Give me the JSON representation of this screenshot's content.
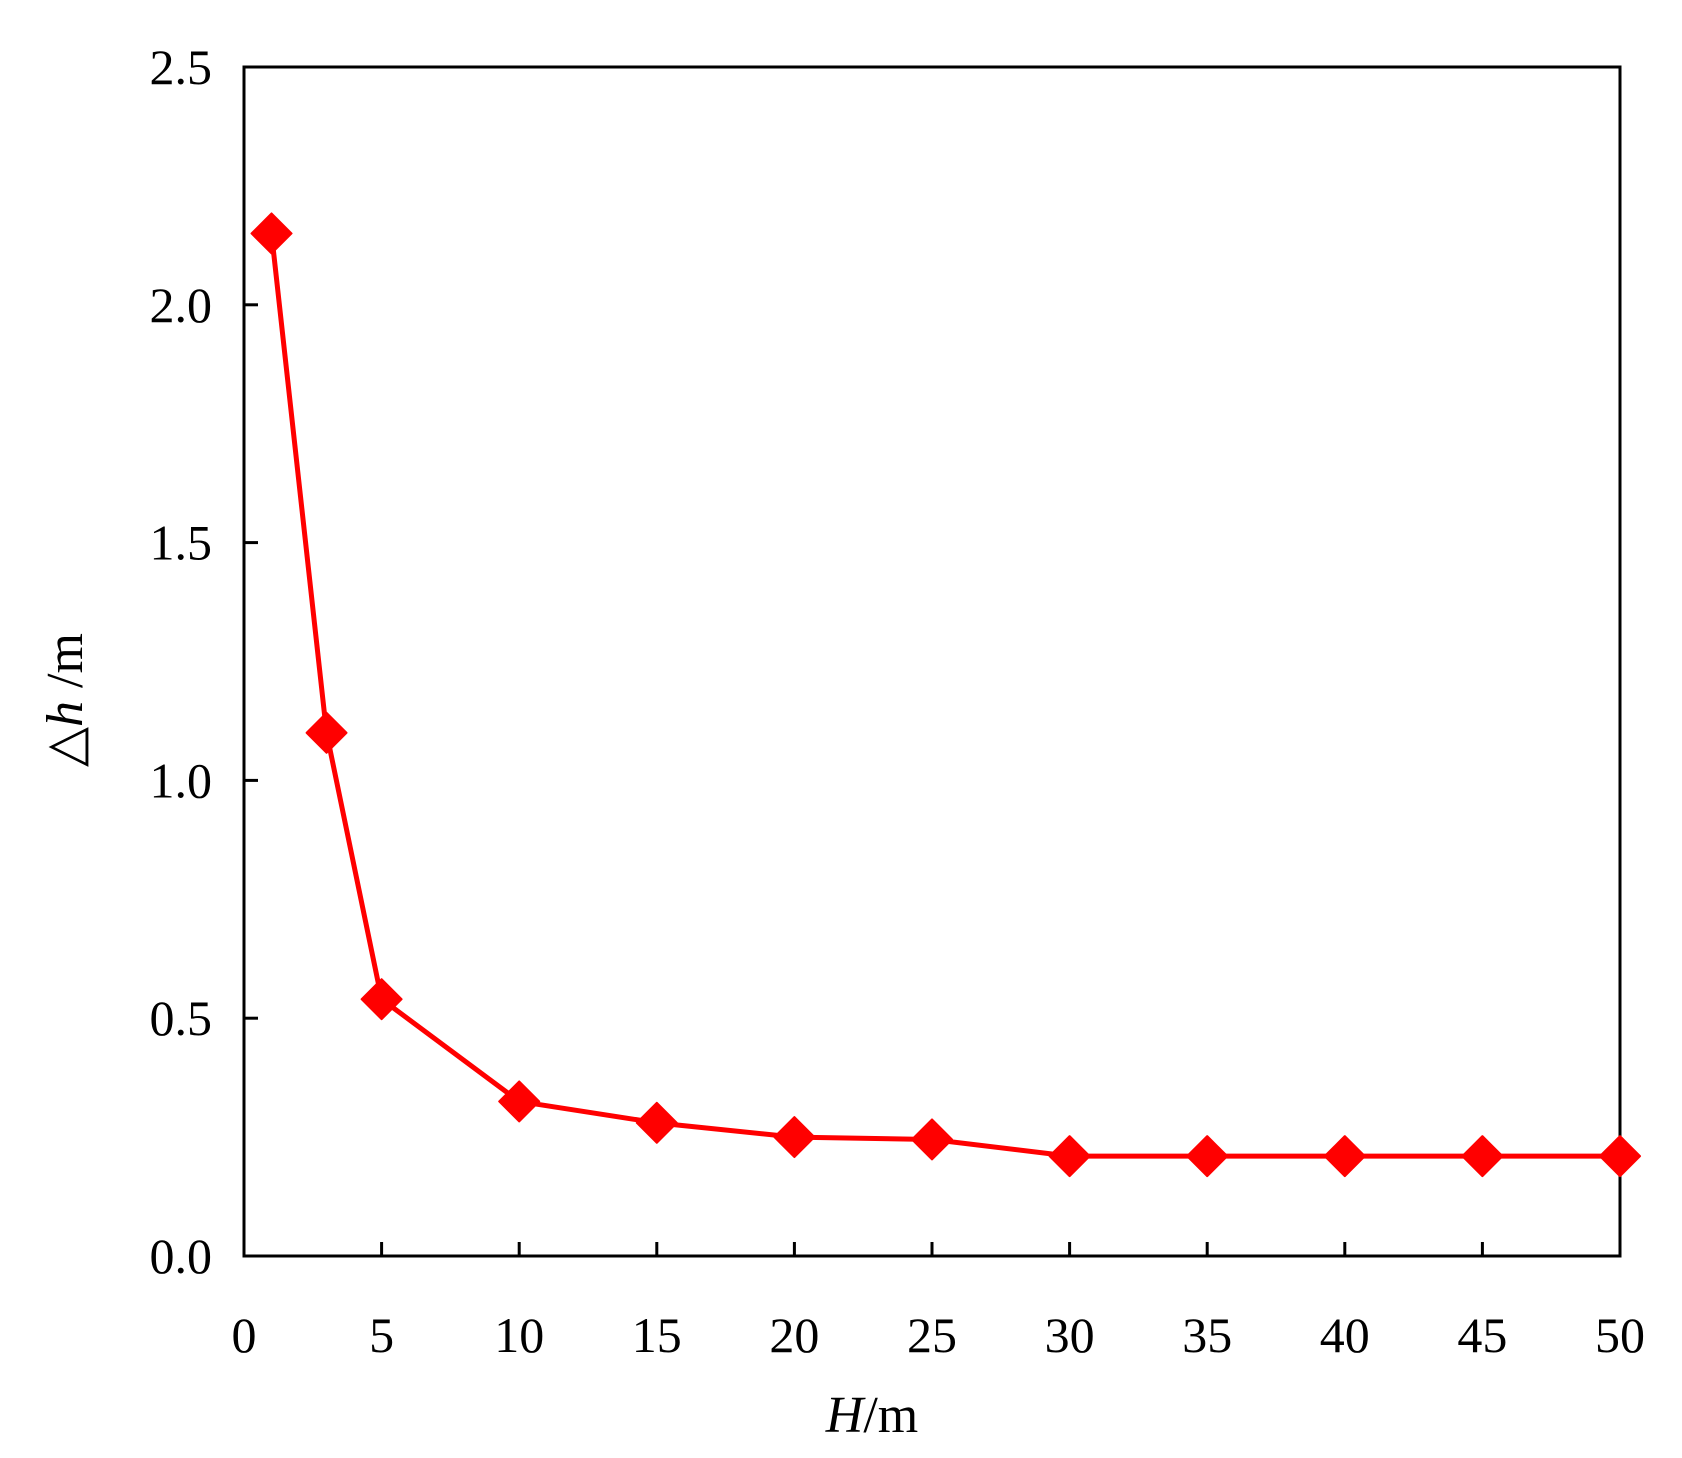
{
  "chart_data": {
    "type": "line",
    "title": "",
    "xlabel": {
      "italic": "H",
      "plain": "/m"
    },
    "ylabel": {
      "italic": "△h",
      "plain": " /m"
    },
    "xlim": [
      0,
      50
    ],
    "ylim": [
      0,
      2.5
    ],
    "xticks": [
      "0",
      "5",
      "10",
      "15",
      "20",
      "25",
      "30",
      "35",
      "40",
      "45",
      "50"
    ],
    "yticks": [
      "0.0",
      "0.5",
      "1.0",
      "1.5",
      "2.0",
      "2.5"
    ],
    "grid": false,
    "legend": "none",
    "series": [
      {
        "color": "#ff0000",
        "marker": "diamond",
        "x": [
          1,
          3,
          5,
          10,
          15,
          20,
          25,
          30,
          35,
          40,
          45,
          50
        ],
        "y": [
          2.15,
          1.1,
          0.54,
          0.325,
          0.28,
          0.25,
          0.245,
          0.21,
          0.21,
          0.21,
          0.21,
          0.21
        ]
      }
    ]
  }
}
